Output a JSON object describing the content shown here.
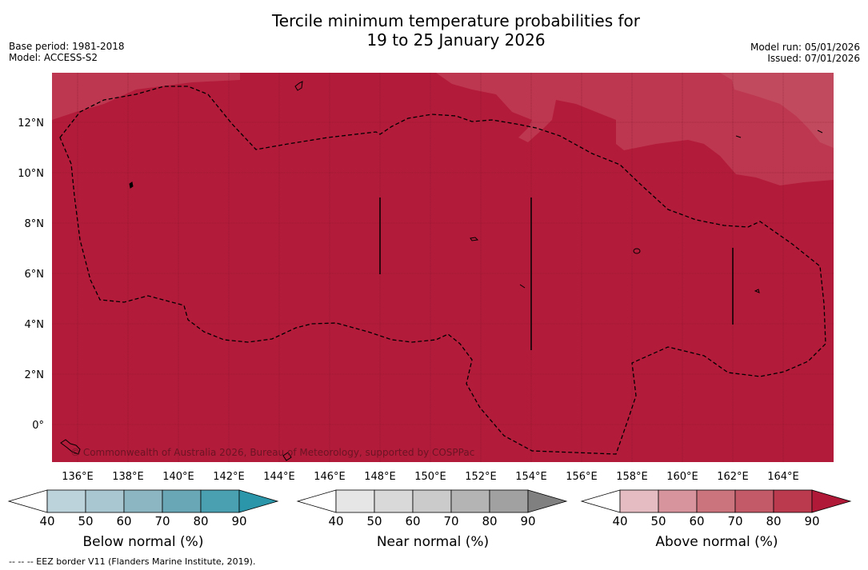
{
  "title": {
    "line1": "Tercile minimum temperature probabilities for",
    "line2": "19 to 25 January 2026"
  },
  "meta_left": {
    "base_period": "Base period: 1981-2018",
    "model": "Model: ACCESS-S2"
  },
  "meta_right": {
    "model_run": "Model run: 05/01/2026",
    "issued": "Issued: 07/01/2026"
  },
  "map": {
    "lat_labels": [
      "12°N",
      "10°N",
      "8°N",
      "6°N",
      "4°N",
      "2°N",
      "0°"
    ],
    "lon_labels": [
      "136°E",
      "138°E",
      "140°E",
      "142°E",
      "144°E",
      "146°E",
      "148°E",
      "150°E",
      "152°E",
      "154°E",
      "156°E",
      "158°E",
      "160°E",
      "162°E",
      "164°E"
    ],
    "credit": "© Commonwealth of Australia 2026, Bureau of Meteorology, supported by COSPPac",
    "fill_color_main": "#b31b3a",
    "fill_color_light": "#bd3750"
  },
  "colorbars": [
    {
      "label": "Below normal (%)",
      "ticks": [
        "40",
        "50",
        "60",
        "70",
        "80",
        "90"
      ],
      "colors": [
        "#ffffff",
        "#bcd3db",
        "#a9c7d0",
        "#8cb6c2",
        "#6aa7b6",
        "#4aa0b1",
        "#2b96aa"
      ]
    },
    {
      "label": "Near normal (%)",
      "ticks": [
        "40",
        "50",
        "60",
        "70",
        "80",
        "90"
      ],
      "colors": [
        "#ffffff",
        "#e6e6e6",
        "#d9d9d9",
        "#cbcbcb",
        "#b4b4b4",
        "#a1a1a1",
        "#808080"
      ]
    },
    {
      "label": "Above normal (%)",
      "ticks": [
        "40",
        "50",
        "60",
        "70",
        "80",
        "90"
      ],
      "colors": [
        "#ffffff",
        "#e5bcc2",
        "#d8949c",
        "#cb747e",
        "#c35a68",
        "#bb3a4d",
        "#b01a38"
      ]
    }
  ],
  "footnote": "--  --  -- EEZ border V11 (Flanders Marine Institute, 2019)."
}
